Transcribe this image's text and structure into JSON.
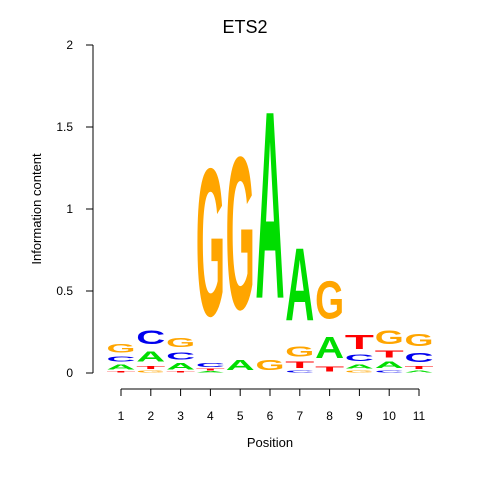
{
  "chart_data": {
    "type": "sequence-logo",
    "title": "ETS2",
    "xlabel": "Position",
    "ylabel": "Information content",
    "ylim": [
      0,
      2
    ],
    "yticks": [
      "0",
      "0.5",
      "1",
      "1.5",
      "2"
    ],
    "positions": [
      "1",
      "2",
      "3",
      "4",
      "5",
      "6",
      "7",
      "8",
      "9",
      "10",
      "11"
    ],
    "colors": {
      "A": "#00dd00",
      "C": "#0000ee",
      "G": "#ffa500",
      "T": "#ff0000"
    },
    "stacks": [
      [
        {
          "base": "T",
          "value": 0.01
        },
        {
          "base": "A",
          "value": 0.05
        },
        {
          "base": "C",
          "value": 0.05
        },
        {
          "base": "G",
          "value": 0.08
        }
      ],
      [
        {
          "base": "G",
          "value": 0.02
        },
        {
          "base": "T",
          "value": 0.03
        },
        {
          "base": "A",
          "value": 0.1
        },
        {
          "base": "C",
          "value": 0.13
        }
      ],
      [
        {
          "base": "T",
          "value": 0.01
        },
        {
          "base": "A",
          "value": 0.06
        },
        {
          "base": "C",
          "value": 0.07
        },
        {
          "base": "G",
          "value": 0.09
        }
      ],
      [
        {
          "base": "A",
          "value": 0.01
        },
        {
          "base": "T",
          "value": 0.02
        },
        {
          "base": "C",
          "value": 0.04
        },
        {
          "base": "G",
          "value": 1.44
        }
      ],
      [
        {
          "base": "A",
          "value": 0.1
        },
        {
          "base": "G",
          "value": 1.49
        }
      ],
      [
        {
          "base": "G",
          "value": 0.1
        },
        {
          "base": "A",
          "value": 1.83
        }
      ],
      [
        {
          "base": "C",
          "value": 0.02
        },
        {
          "base": "T",
          "value": 0.06
        },
        {
          "base": "G",
          "value": 0.1
        },
        {
          "base": "A",
          "value": 0.71
        }
      ],
      [
        {
          "base": "T",
          "value": 0.05
        },
        {
          "base": "A",
          "value": 0.21
        },
        {
          "base": "G",
          "value": 0.37
        }
      ],
      [
        {
          "base": "G",
          "value": 0.02
        },
        {
          "base": "A",
          "value": 0.04
        },
        {
          "base": "C",
          "value": 0.06
        },
        {
          "base": "T",
          "value": 0.14
        }
      ],
      [
        {
          "base": "C",
          "value": 0.02
        },
        {
          "base": "A",
          "value": 0.06
        },
        {
          "base": "T",
          "value": 0.07
        },
        {
          "base": "G",
          "value": 0.13
        }
      ],
      [
        {
          "base": "A",
          "value": 0.02
        },
        {
          "base": "T",
          "value": 0.03
        },
        {
          "base": "C",
          "value": 0.09
        },
        {
          "base": "G",
          "value": 0.12
        }
      ]
    ]
  }
}
